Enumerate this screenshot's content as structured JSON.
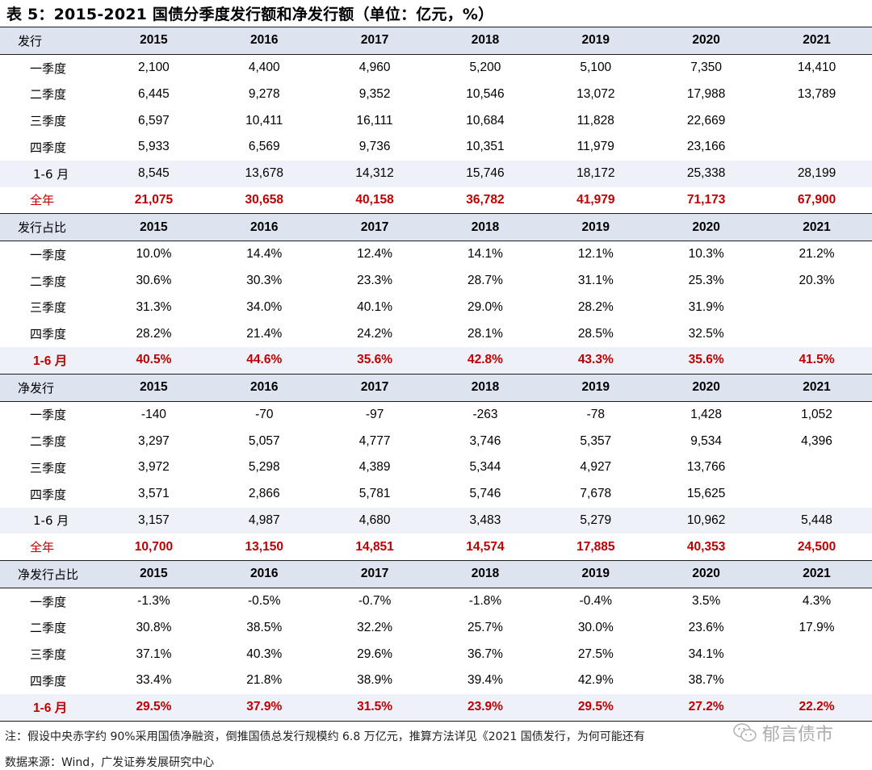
{
  "title": "表 5：2015-2021 国债分季度发行额和净发行额（单位：亿元，%）",
  "years": [
    "2015",
    "2016",
    "2017",
    "2018",
    "2019",
    "2020",
    "2021"
  ],
  "sections": [
    {
      "header": "发行",
      "rows": [
        {
          "label": "一季度",
          "style": "plain",
          "values": [
            "2,100",
            "4,400",
            "4,960",
            "5,200",
            "5,100",
            "7,350",
            "14,410"
          ]
        },
        {
          "label": "二季度",
          "style": "plain",
          "values": [
            "6,445",
            "9,278",
            "9,352",
            "10,546",
            "13,072",
            "17,988",
            "13,789"
          ]
        },
        {
          "label": "三季度",
          "style": "plain",
          "values": [
            "6,597",
            "10,411",
            "16,111",
            "10,684",
            "11,828",
            "22,669",
            ""
          ]
        },
        {
          "label": "四季度",
          "style": "plain",
          "values": [
            "5,933",
            "6,569",
            "9,736",
            "10,351",
            "11,979",
            "23,166",
            ""
          ]
        },
        {
          "label": "1-6 月",
          "style": "shade",
          "values": [
            "8,545",
            "13,678",
            "14,312",
            "15,746",
            "18,172",
            "25,338",
            "28,199"
          ]
        },
        {
          "label": "全年",
          "style": "red",
          "values": [
            "21,075",
            "30,658",
            "40,158",
            "36,782",
            "41,979",
            "71,173",
            "67,900"
          ]
        }
      ]
    },
    {
      "header": "发行占比",
      "rows": [
        {
          "label": "一季度",
          "style": "plain",
          "values": [
            "10.0%",
            "14.4%",
            "12.4%",
            "14.1%",
            "12.1%",
            "10.3%",
            "21.2%"
          ]
        },
        {
          "label": "二季度",
          "style": "plain",
          "values": [
            "30.6%",
            "30.3%",
            "23.3%",
            "28.7%",
            "31.1%",
            "25.3%",
            "20.3%"
          ]
        },
        {
          "label": "三季度",
          "style": "plain",
          "values": [
            "31.3%",
            "34.0%",
            "40.1%",
            "29.0%",
            "28.2%",
            "31.9%",
            ""
          ]
        },
        {
          "label": "四季度",
          "style": "plain",
          "values": [
            "28.2%",
            "21.4%",
            "24.2%",
            "28.1%",
            "28.5%",
            "32.5%",
            ""
          ]
        },
        {
          "label": "1-6 月",
          "style": "red6",
          "values": [
            "40.5%",
            "44.6%",
            "35.6%",
            "42.8%",
            "43.3%",
            "35.6%",
            "41.5%"
          ]
        }
      ]
    },
    {
      "header": "净发行",
      "rows": [
        {
          "label": "一季度",
          "style": "plain",
          "values": [
            "-140",
            "-70",
            "-97",
            "-263",
            "-78",
            "1,428",
            "1,052"
          ]
        },
        {
          "label": "二季度",
          "style": "plain",
          "values": [
            "3,297",
            "5,057",
            "4,777",
            "3,746",
            "5,357",
            "9,534",
            "4,396"
          ]
        },
        {
          "label": "三季度",
          "style": "plain",
          "values": [
            "3,972",
            "5,298",
            "4,389",
            "5,344",
            "4,927",
            "13,766",
            ""
          ]
        },
        {
          "label": "四季度",
          "style": "plain",
          "values": [
            "3,571",
            "2,866",
            "5,781",
            "5,746",
            "7,678",
            "15,625",
            ""
          ]
        },
        {
          "label": "1-6 月",
          "style": "shade",
          "values": [
            "3,157",
            "4,987",
            "4,680",
            "3,483",
            "5,279",
            "10,962",
            "5,448"
          ]
        },
        {
          "label": "全年",
          "style": "red",
          "values": [
            "10,700",
            "13,150",
            "14,851",
            "14,574",
            "17,885",
            "40,353",
            "24,500"
          ]
        }
      ]
    },
    {
      "header": "净发行占比",
      "rows": [
        {
          "label": "一季度",
          "style": "plain",
          "values": [
            "-1.3%",
            "-0.5%",
            "-0.7%",
            "-1.8%",
            "-0.4%",
            "3.5%",
            "4.3%"
          ]
        },
        {
          "label": "二季度",
          "style": "plain",
          "values": [
            "30.8%",
            "38.5%",
            "32.2%",
            "25.7%",
            "30.0%",
            "23.6%",
            "17.9%"
          ]
        },
        {
          "label": "三季度",
          "style": "plain",
          "values": [
            "37.1%",
            "40.3%",
            "29.6%",
            "36.7%",
            "27.5%",
            "34.1%",
            ""
          ]
        },
        {
          "label": "四季度",
          "style": "plain",
          "values": [
            "33.4%",
            "21.8%",
            "38.9%",
            "39.4%",
            "42.9%",
            "38.7%",
            ""
          ]
        },
        {
          "label": "1-6 月",
          "style": "red6",
          "values": [
            "29.5%",
            "37.9%",
            "31.5%",
            "23.9%",
            "29.5%",
            "27.2%",
            "22.2%"
          ]
        }
      ]
    }
  ],
  "note": "注：假设中央赤字约 90%采用国债净融资，倒推国债总发行规模约 6.8 万亿元，推算方法详见《2021 国债发行，为何可能还有",
  "source": "数据来源：Wind，广发证券发展研究中心",
  "watermark": "郁言债市",
  "colors": {
    "red": "#c00000",
    "header_bg": "#dde3ef",
    "shade_bg": "#eef1f7"
  }
}
